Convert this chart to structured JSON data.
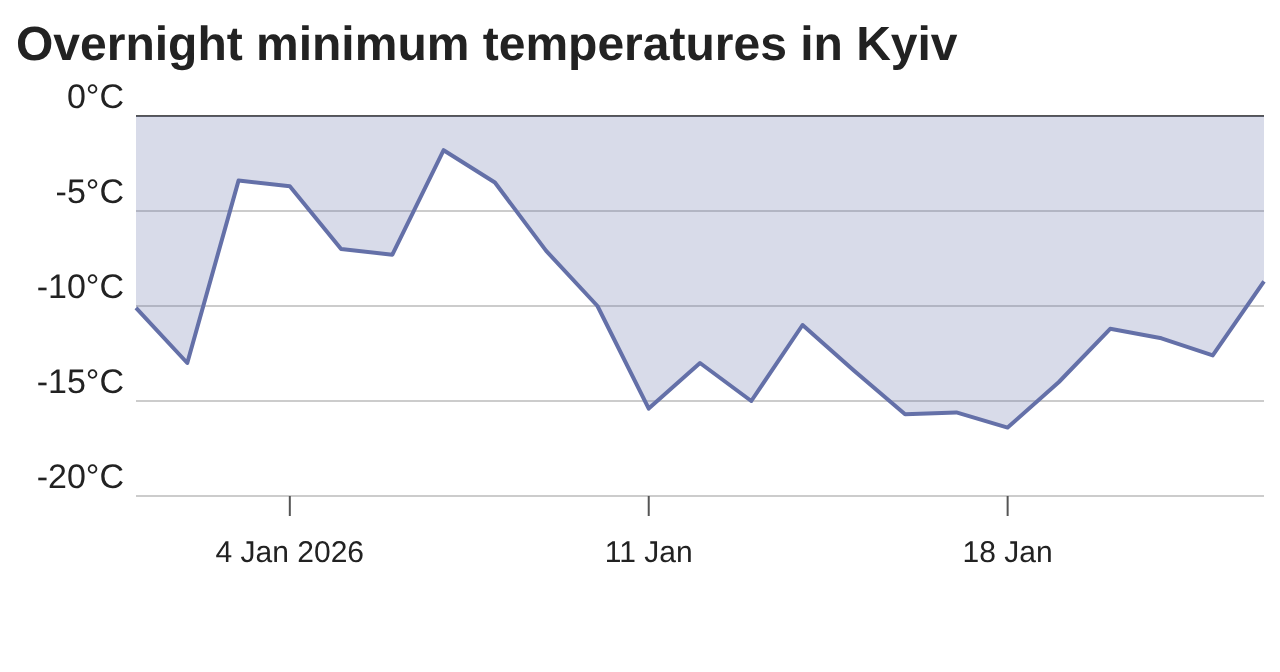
{
  "chart_data": {
    "type": "area",
    "title": "Overnight minimum temperatures in Kyiv",
    "x": [
      "2026-01-01",
      "2026-01-02",
      "2026-01-03",
      "2026-01-04",
      "2026-01-05",
      "2026-01-06",
      "2026-01-07",
      "2026-01-08",
      "2026-01-09",
      "2026-01-10",
      "2026-01-11",
      "2026-01-12",
      "2026-01-13",
      "2026-01-14",
      "2026-01-15",
      "2026-01-16",
      "2026-01-17",
      "2026-01-18",
      "2026-01-19",
      "2026-01-20",
      "2026-01-21",
      "2026-01-22",
      "2026-01-23"
    ],
    "series": [
      {
        "color": "#6470a8",
        "values": [
          -10.1,
          -13.0,
          -3.4,
          -3.7,
          -7.0,
          -7.3,
          -1.8,
          -3.5,
          -7.1,
          -10.0,
          -15.4,
          -13.0,
          -15.0,
          -11.0,
          -13.4,
          -15.7,
          -15.6,
          -16.4,
          -14.0,
          -11.2,
          -11.7,
          -12.6,
          -8.7
        ]
      }
    ],
    "xlim": [
      "2026-01-01",
      "2026-01-23"
    ],
    "xticks": [
      {
        "value": "2026-01-04",
        "label": "4 Jan 2026"
      },
      {
        "value": "2026-01-11",
        "label": "11 Jan"
      },
      {
        "value": "2026-01-18",
        "label": "18 Jan"
      }
    ],
    "ylim": [
      -20,
      0
    ],
    "yticks": [
      {
        "value": 0,
        "label": "0°C"
      },
      {
        "value": -5,
        "label": "-5°C"
      },
      {
        "value": -10,
        "label": "-10°C"
      },
      {
        "value": -15,
        "label": "-15°C"
      },
      {
        "value": -20,
        "label": "-20°C"
      }
    ],
    "grid": "y"
  }
}
